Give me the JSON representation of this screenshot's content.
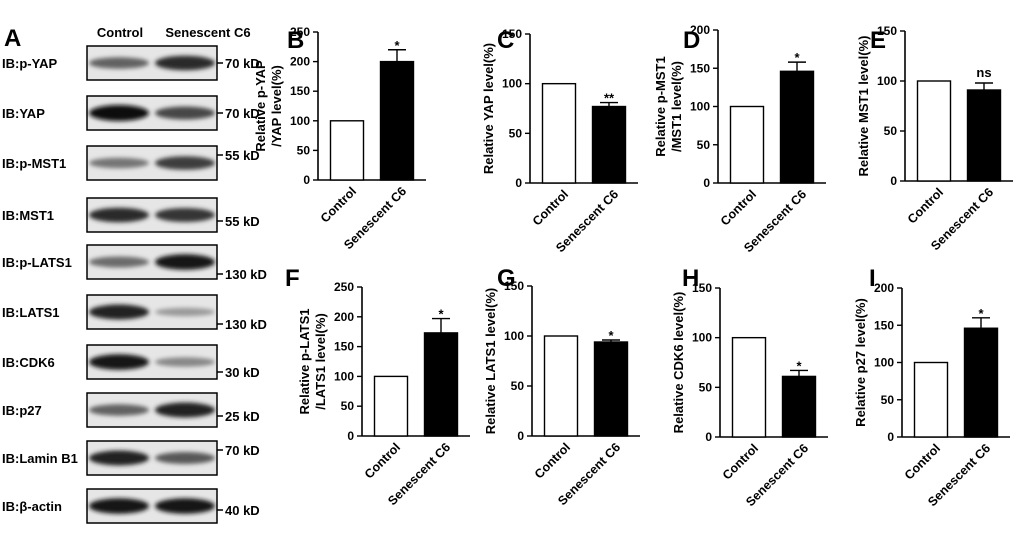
{
  "western_blot": {
    "panel_label": "A",
    "columns": [
      "Control",
      "Senescent C6"
    ],
    "rows": [
      {
        "label": "IB:p-YAP",
        "marker": "70 kD",
        "ctrl": 0.55,
        "sen": 0.85
      },
      {
        "label": "IB:YAP",
        "marker": "70 kD",
        "ctrl": 1.0,
        "sen": 0.7
      },
      {
        "label": "IB:p-MST1",
        "marker": "55 kD",
        "ctrl": 0.45,
        "sen": 0.75
      },
      {
        "label": "IB:MST1",
        "marker": "55 kD",
        "ctrl": 0.85,
        "sen": 0.8
      },
      {
        "label": "IB:p-LATS1",
        "marker": "130 kD",
        "ctrl": 0.5,
        "sen": 0.95
      },
      {
        "label": "IB:LATS1",
        "marker": "130 kD",
        "ctrl": 0.9,
        "sen": 0.25
      },
      {
        "label": "IB:CDK6",
        "marker": "30 kD",
        "ctrl": 0.95,
        "sen": 0.35
      },
      {
        "label": "IB:p27",
        "marker": "25 kD",
        "ctrl": 0.55,
        "sen": 0.9
      },
      {
        "label": "IB:Lamin B1",
        "marker": "70 kD",
        "ctrl": 0.9,
        "sen": 0.6
      },
      {
        "label": "IB:β-actin",
        "marker": "40 kD",
        "ctrl": 0.95,
        "sen": 0.95
      }
    ]
  },
  "chart_data": [
    {
      "type": "bar",
      "panel": "B",
      "categories": [
        "Control",
        "Senescent C6"
      ],
      "values": [
        100,
        200
      ],
      "errors": [
        0,
        20
      ],
      "ylim": [
        0,
        250
      ],
      "yticks": [
        0,
        50,
        100,
        150,
        200,
        250
      ],
      "ylabel_lines": [
        "Relative p-YAP",
        "/YAP level(%)"
      ],
      "significance": "*"
    },
    {
      "type": "bar",
      "panel": "C",
      "categories": [
        "Control",
        "Senescent C6"
      ],
      "values": [
        100,
        77
      ],
      "errors": [
        0,
        4
      ],
      "ylim": [
        0,
        150
      ],
      "yticks": [
        0,
        50,
        100,
        150
      ],
      "ylabel_lines": [
        "Relative YAP level(%)"
      ],
      "significance": "**"
    },
    {
      "type": "bar",
      "panel": "D",
      "categories": [
        "Control",
        "Senescent C6"
      ],
      "values": [
        100,
        146
      ],
      "errors": [
        0,
        12
      ],
      "ylim": [
        0,
        200
      ],
      "yticks": [
        0,
        50,
        100,
        150,
        200
      ],
      "ylabel_lines": [
        "Relative p-MST1",
        "/MST1 level(%)"
      ],
      "significance": "*"
    },
    {
      "type": "bar",
      "panel": "E",
      "categories": [
        "Control",
        "Senescent C6"
      ],
      "values": [
        100,
        91
      ],
      "errors": [
        0,
        7
      ],
      "ylim": [
        0,
        150
      ],
      "yticks": [
        0,
        50,
        100,
        150
      ],
      "ylabel_lines": [
        "Relative MST1 level(%)"
      ],
      "significance": "ns"
    },
    {
      "type": "bar",
      "panel": "F",
      "categories": [
        "Control",
        "Senescent C6"
      ],
      "values": [
        100,
        173
      ],
      "errors": [
        0,
        24
      ],
      "ylim": [
        0,
        250
      ],
      "yticks": [
        0,
        50,
        100,
        150,
        200,
        250
      ],
      "ylabel_lines": [
        "Relative p-LATS1",
        "/LATS1 level(%)"
      ],
      "significance": "*"
    },
    {
      "type": "bar",
      "panel": "G",
      "categories": [
        "Control",
        "Senescent C6"
      ],
      "values": [
        100,
        94
      ],
      "errors": [
        0,
        2
      ],
      "ylim": [
        0,
        150
      ],
      "yticks": [
        0,
        50,
        100,
        150
      ],
      "ylabel_lines": [
        "Relative LATS1 level(%)"
      ],
      "significance": "*"
    },
    {
      "type": "bar",
      "panel": "H",
      "categories": [
        "Control",
        "Senescent C6"
      ],
      "values": [
        100,
        61
      ],
      "errors": [
        0,
        6
      ],
      "ylim": [
        0,
        150
      ],
      "yticks": [
        0,
        50,
        100,
        150
      ],
      "ylabel_lines": [
        "Relative CDK6 level(%)"
      ],
      "significance": "*"
    },
    {
      "type": "bar",
      "panel": "I",
      "categories": [
        "Control",
        "Senescent C6"
      ],
      "values": [
        100,
        146
      ],
      "errors": [
        0,
        14
      ],
      "ylim": [
        0,
        200
      ],
      "yticks": [
        0,
        50,
        100,
        150,
        200
      ],
      "ylabel_lines": [
        "Relative p27 level(%)"
      ],
      "significance": "*"
    }
  ]
}
